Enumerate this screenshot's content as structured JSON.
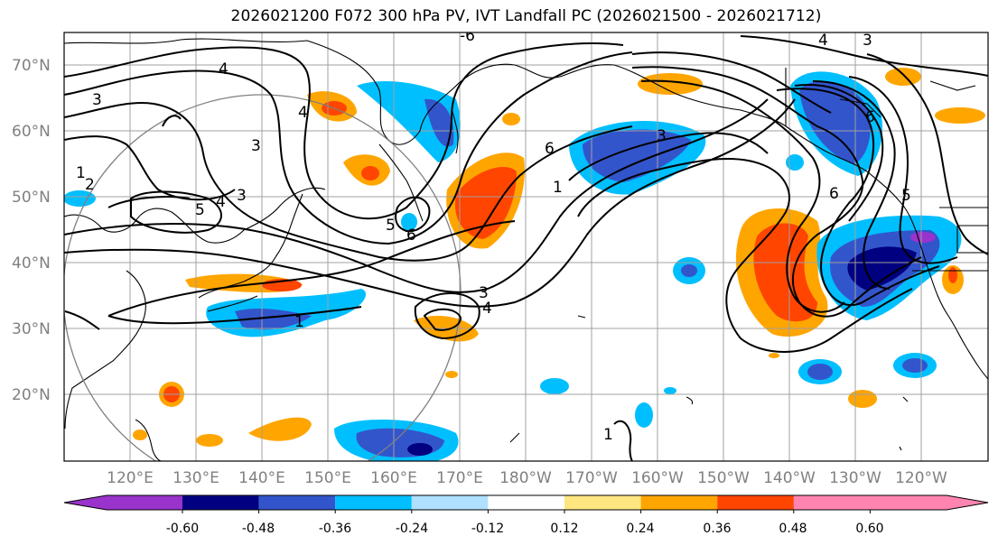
{
  "title": "2026021200 F072 300 hPa PV, IVT Landfall PC (2026021500 - 2026021712)",
  "lat_labels": [
    "70°N",
    "60°N",
    "50°N",
    "40°N",
    "30°N",
    "20°N"
  ],
  "lon_labels": [
    "120°E",
    "130°E",
    "140°E",
    "150°E",
    "160°E",
    "170°E",
    "180°W",
    "170°W",
    "160°W",
    "150°W",
    "140°W",
    "130°W",
    "120°W"
  ],
  "contour_labels": [
    "-6",
    "4",
    "3",
    "4",
    "1",
    "2",
    "3",
    "4",
    "5",
    "5",
    "6",
    "3",
    "3",
    "4",
    "1",
    "6",
    "3",
    "6",
    "1",
    "4",
    "3",
    "6",
    "5",
    "1"
  ],
  "colorbar": {
    "tick_labels": [
      "-0.60",
      "-0.48",
      "-0.36",
      "-0.24",
      "-0.12",
      "0.12",
      "0.24",
      "0.36",
      "0.48",
      "0.60"
    ],
    "colors": [
      "#9933cc",
      "#000080",
      "#3355cc",
      "#00bfff",
      "#b0e0ff",
      "#ffffff",
      "#ffe680",
      "#ffa500",
      "#ff4500",
      "#b22222",
      "#ff85b0"
    ]
  },
  "colors": {
    "land_line": "#000000",
    "grid": "#a0a0a0",
    "contour": "#000000",
    "circle": "#808080"
  }
}
